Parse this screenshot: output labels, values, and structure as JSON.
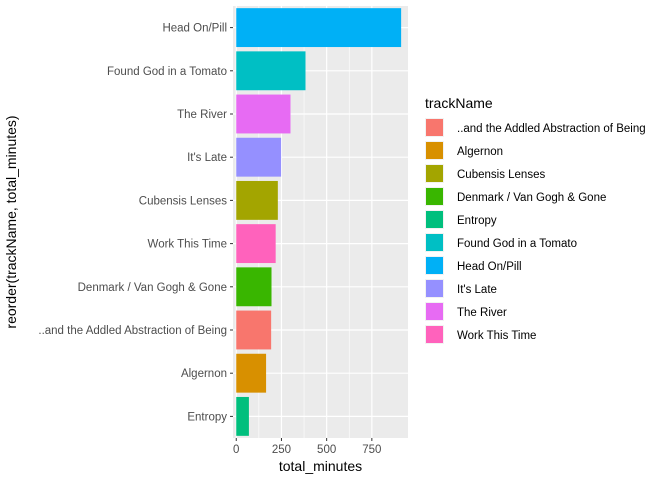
{
  "chart_data": {
    "type": "bar",
    "orientation": "horizontal",
    "xlabel": "total_minutes",
    "ylabel": "reorder(trackName, total_minutes)",
    "xlim": [
      -18,
      950
    ],
    "xticks": [
      0,
      250,
      500,
      750
    ],
    "grid": true,
    "legend_placement": "right",
    "legend_title": "trackName",
    "categories": [
      "Head On/Pill",
      "Found God in a Tomato",
      "The River",
      "It's Late",
      "Cubensis Lenses",
      "Work This Time",
      "Denmark / Van Gogh & Gone",
      "..and the Addled Abstraction of Being",
      "Algernon",
      "Entropy"
    ],
    "values": [
      912,
      383,
      300,
      248,
      230,
      218,
      195,
      193,
      165,
      70
    ],
    "colors": {
      "..and the Addled Abstraction of Being": "#F8766D",
      "Algernon": "#D89000",
      "Cubensis Lenses": "#A3A500",
      "Denmark / Van Gogh & Gone": "#39B600",
      "Entropy": "#00BF7D",
      "Found God in a Tomato": "#00BFC4",
      "Head On/Pill": "#00B0F6",
      "It's Late": "#9590FF",
      "The River": "#E76BF3",
      "Work This Time": "#FF62BC"
    },
    "legend": [
      "..and the Addled Abstraction of Being",
      "Algernon",
      "Cubensis Lenses",
      "Denmark / Van Gogh & Gone",
      "Entropy",
      "Found God in a Tomato",
      "Head On/Pill",
      "It's Late",
      "The River",
      "Work This Time"
    ]
  }
}
